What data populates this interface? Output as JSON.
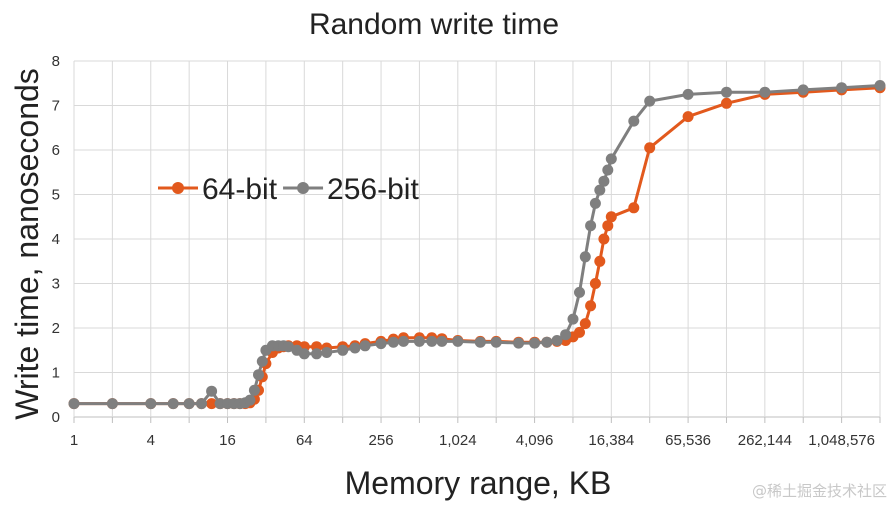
{
  "chart_data": {
    "type": "line",
    "title": "Random write time",
    "xlabel": "Memory range, KB",
    "ylabel": "Write time, nanoseconds",
    "x_scale": "log2",
    "xlim": [
      1,
      2097152
    ],
    "ylim": [
      0,
      8
    ],
    "x_ticks": [
      1,
      4,
      16,
      64,
      256,
      1024,
      4096,
      16384,
      65536,
      262144,
      1048576
    ],
    "x_tick_labels": [
      "1",
      "4",
      "16",
      "64",
      "256",
      "1,024",
      "4,096",
      "16,384",
      "65,536",
      "262,144",
      "1,048,576"
    ],
    "y_ticks": [
      0,
      1,
      2,
      3,
      4,
      5,
      6,
      7,
      8
    ],
    "y_tick_labels": [
      "0",
      "1",
      "2",
      "3",
      "4",
      "5",
      "6",
      "7",
      "8"
    ],
    "grid": true,
    "legend_position": "left-middle",
    "series": [
      {
        "name": "64-bit",
        "color": "#e2591d",
        "x": [
          1,
          2,
          4,
          6,
          8,
          10,
          12,
          14,
          16,
          18,
          20,
          22,
          24,
          26,
          28,
          30,
          32,
          36,
          40,
          44,
          48,
          56,
          64,
          80,
          96,
          128,
          160,
          192,
          256,
          320,
          384,
          512,
          640,
          768,
          1024,
          1536,
          2048,
          3072,
          4096,
          5120,
          6144,
          7168,
          8192,
          9216,
          10240,
          11264,
          12288,
          13312,
          14336,
          15360,
          16384,
          24576,
          32768,
          65536,
          131072,
          262144,
          524288,
          1048576,
          2097152
        ],
        "y": [
          0.3,
          0.3,
          0.3,
          0.3,
          0.3,
          0.3,
          0.3,
          0.3,
          0.3,
          0.3,
          0.3,
          0.3,
          0.32,
          0.4,
          0.6,
          0.9,
          1.2,
          1.45,
          1.55,
          1.58,
          1.6,
          1.6,
          1.58,
          1.58,
          1.55,
          1.58,
          1.6,
          1.65,
          1.7,
          1.75,
          1.78,
          1.78,
          1.78,
          1.76,
          1.72,
          1.7,
          1.7,
          1.68,
          1.68,
          1.68,
          1.7,
          1.72,
          1.8,
          1.9,
          2.1,
          2.5,
          3.0,
          3.5,
          4.0,
          4.3,
          4.5,
          4.7,
          6.05,
          6.75,
          7.05,
          7.25,
          7.3,
          7.35,
          7.4
        ]
      },
      {
        "name": "256-bit",
        "color": "#7f7f7f",
        "x": [
          1,
          2,
          4,
          6,
          8,
          10,
          12,
          14,
          16,
          18,
          20,
          22,
          24,
          26,
          28,
          30,
          32,
          36,
          40,
          44,
          48,
          56,
          64,
          80,
          96,
          128,
          160,
          192,
          256,
          320,
          384,
          512,
          640,
          768,
          1024,
          1536,
          2048,
          3072,
          4096,
          5120,
          6144,
          7168,
          8192,
          9216,
          10240,
          11264,
          12288,
          13312,
          14336,
          15360,
          16384,
          24576,
          32768,
          65536,
          131072,
          262144,
          524288,
          1048576,
          2097152
        ],
        "y": [
          0.3,
          0.3,
          0.3,
          0.3,
          0.3,
          0.3,
          0.58,
          0.3,
          0.3,
          0.3,
          0.3,
          0.32,
          0.38,
          0.6,
          0.95,
          1.25,
          1.5,
          1.6,
          1.6,
          1.6,
          1.58,
          1.5,
          1.42,
          1.42,
          1.45,
          1.5,
          1.55,
          1.6,
          1.65,
          1.68,
          1.7,
          1.7,
          1.7,
          1.7,
          1.7,
          1.68,
          1.68,
          1.66,
          1.66,
          1.68,
          1.72,
          1.85,
          2.2,
          2.8,
          3.6,
          4.3,
          4.8,
          5.1,
          5.3,
          5.55,
          5.8,
          6.65,
          7.1,
          7.25,
          7.3,
          7.3,
          7.35,
          7.4,
          7.45
        ]
      }
    ],
    "watermark": "@稀土掘金技术社区"
  }
}
